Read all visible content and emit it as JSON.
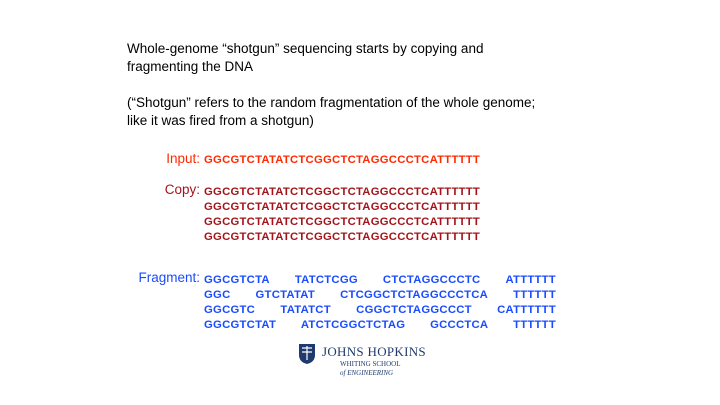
{
  "intro": {
    "lines": [
      "Whole-genome “shotgun” sequencing starts by copying and",
      "fragmenting the DNA"
    ]
  },
  "note": {
    "lines": [
      "(“Shotgun” refers to the random fragmentation of the whole genome;",
      "like it was fired from a shotgun)"
    ]
  },
  "input": {
    "label": "Input:",
    "sequence": "GGCGTCTATATCTCGGCTCTAGGCCCTCATTTTTT"
  },
  "copy": {
    "label": "Copy:",
    "sequences": [
      "GGCGTCTATATCTCGGCTCTAGGCCCTCATTTTTT",
      "GGCGTCTATATCTCGGCTCTAGGCCCTCATTTTTT",
      "GGCGTCTATATCTCGGCTCTAGGCCCTCATTTTTT",
      "GGCGTCTATATCTCGGCTCTAGGCCCTCATTTTTT"
    ]
  },
  "fragment": {
    "label": "Fragment:",
    "rows": [
      [
        "GGCGTCTA",
        "TATCTCGG",
        "CTCTAGGCCCTC",
        "ATTTTTT"
      ],
      [
        "GGC",
        "GTCTATAT",
        "CTCGGCTCTAGGCCCTCA",
        "TTTTTT"
      ],
      [
        "GGCGTC",
        "TATATCT",
        "CGGCTCTAGGCCCT",
        "CATTTTTT"
      ],
      [
        "GGCGTCTAT",
        "ATCTCGGCTCTAG",
        "GCCCTCA",
        "TTTTTT"
      ]
    ]
  },
  "logo": {
    "name": "JOHNS HOPKINS",
    "school": "WHITING SCHOOL",
    "division": "of ENGINEERING"
  }
}
